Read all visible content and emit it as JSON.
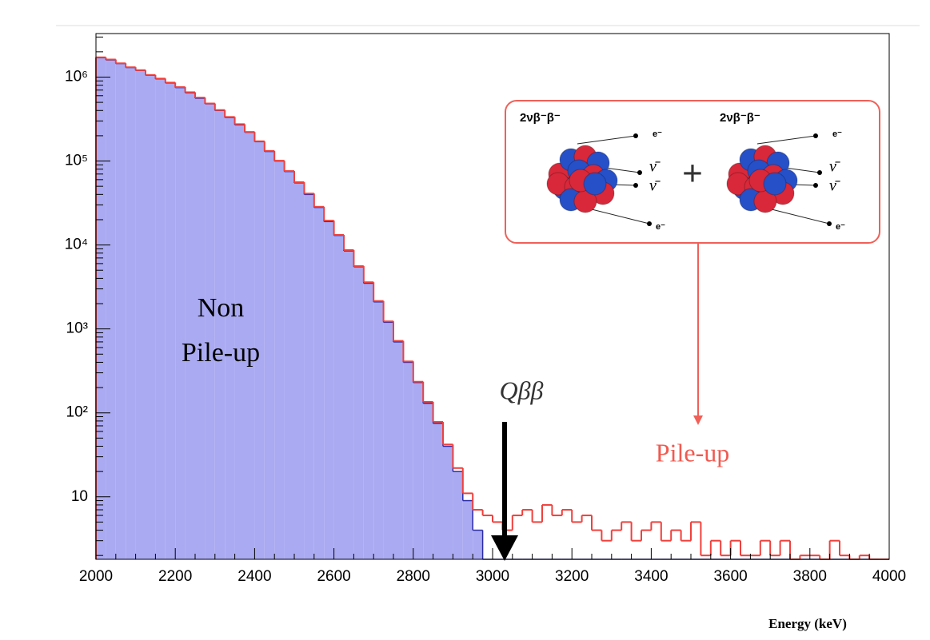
{
  "chart_data": {
    "type": "histogram",
    "xlabel": "Energy (keV)",
    "bins": [
      2000,
      2025,
      2050,
      2075,
      2100,
      2125,
      2150,
      2175,
      2200,
      2225,
      2250,
      2275,
      2300,
      2325,
      2350,
      2375,
      2400,
      2425,
      2450,
      2475,
      2500,
      2525,
      2550,
      2575,
      2600,
      2625,
      2650,
      2675,
      2700,
      2725,
      2750,
      2775,
      2800,
      2825,
      2850,
      2875,
      2900,
      2925,
      2950,
      2975,
      3000,
      3025,
      3050,
      3075,
      3100,
      3125,
      3150,
      3175,
      3200,
      3225,
      3250,
      3275,
      3300,
      3325,
      3350,
      3375,
      3400,
      3425,
      3450,
      3475,
      3500,
      3525,
      3550,
      3575,
      3600,
      3625,
      3650,
      3675,
      3700,
      3725,
      3750,
      3775,
      3800,
      3825,
      3850,
      3875,
      3900,
      3925,
      3950,
      3975,
      4000
    ],
    "series": [
      {
        "color": "#aaaaf2",
        "edge_color": "#2a2aa8",
        "fill": true,
        "values": [
          1700000,
          1600000,
          1450000,
          1300000,
          1200000,
          1050000,
          950000,
          850000,
          750000,
          650000,
          560000,
          480000,
          400000,
          330000,
          270000,
          220000,
          170000,
          130000,
          100000,
          75000,
          55000,
          40000,
          28000,
          19000,
          13000,
          8500,
          5500,
          3500,
          2100,
          1200,
          700,
          400,
          230,
          130,
          75,
          40,
          20,
          9,
          4,
          0,
          0,
          0,
          0,
          0,
          0,
          0,
          0,
          0,
          0,
          0,
          0,
          0,
          0,
          0,
          0,
          0,
          0,
          0,
          0,
          0,
          0,
          0,
          0,
          0,
          0,
          0,
          0,
          0,
          0,
          0,
          0,
          0,
          0,
          0,
          0,
          0,
          0,
          0,
          0,
          0
        ]
      },
      {
        "color": "#f0403c",
        "fill": false,
        "values": [
          1720000,
          1620000,
          1460000,
          1310000,
          1210000,
          1060000,
          960000,
          860000,
          760000,
          660000,
          570000,
          485000,
          405000,
          335000,
          275000,
          222000,
          172000,
          132000,
          101000,
          76000,
          56000,
          41000,
          28500,
          19500,
          13200,
          8700,
          5600,
          3600,
          2150,
          1230,
          720,
          410,
          235,
          135,
          78,
          42,
          22,
          11,
          7,
          6,
          5,
          4,
          6,
          7,
          5,
          8,
          6,
          7,
          5,
          6,
          4,
          3,
          4,
          5,
          3,
          4,
          5,
          3,
          4,
          3,
          5,
          2,
          3,
          2,
          3,
          2,
          2,
          3,
          2,
          3,
          0,
          2,
          2,
          0,
          3,
          2,
          0,
          2,
          0,
          0
        ]
      }
    ],
    "xlim": [
      2000,
      4000
    ],
    "xticks": [
      2000,
      2200,
      2400,
      2600,
      2800,
      3000,
      3200,
      3400,
      3600,
      3800,
      4000
    ],
    "log_y": true,
    "ylim": [
      1.8,
      3300000
    ],
    "yticks": [
      10,
      {
        "value": 100,
        "label": "10²"
      },
      {
        "value": 1000,
        "label": "10³"
      },
      {
        "value": 10000,
        "label": "10⁴"
      },
      {
        "value": 100000,
        "label": "10⁵"
      },
      {
        "value": 1000000,
        "label": "10⁶"
      }
    ],
    "annotations": [
      "Non",
      "Pile-up",
      "Qββ",
      "Pile-up"
    ],
    "inset": {
      "process": "2νβ⁻β⁻",
      "electron": "e⁻",
      "antineutrino": "ν̄",
      "plus": "+"
    }
  }
}
